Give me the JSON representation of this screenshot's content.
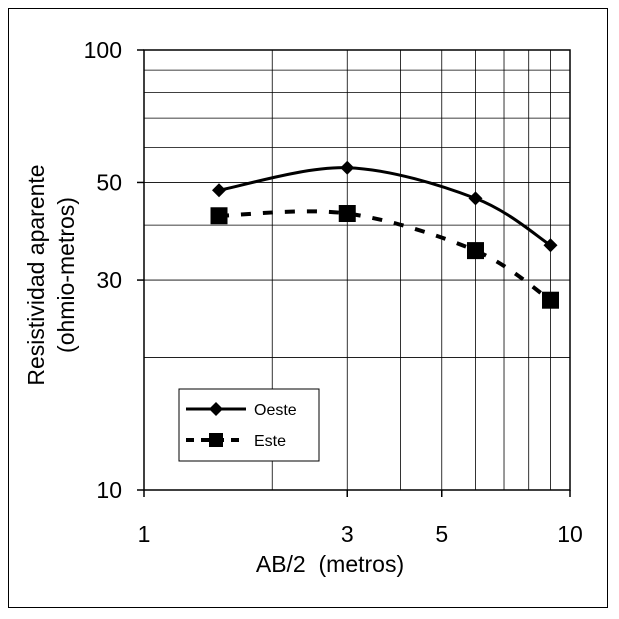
{
  "chart_data": {
    "type": "line",
    "xscale": "log",
    "yscale": "log",
    "xlim": [
      1,
      10
    ],
    "ylim": [
      10,
      100
    ],
    "xticks": [
      1,
      3,
      5,
      10
    ],
    "yticks": [
      10,
      30,
      50,
      100
    ],
    "xtick_labels": [
      "1",
      "3",
      "5",
      "10"
    ],
    "ytick_labels": [
      "10",
      "30",
      "50",
      "100"
    ],
    "xlabel": "AB/2  (metros)",
    "ylabel_line1": "Resistividad aparente",
    "ylabel_line2": "(ohmio-metros)",
    "grid": true,
    "legend_position": "lower-left",
    "series": [
      {
        "name": "Oeste",
        "style": "solid",
        "marker": "diamond",
        "color": "#000000",
        "x": [
          1.5,
          3,
          6,
          9
        ],
        "y": [
          48,
          54,
          46,
          36
        ]
      },
      {
        "name": "Este",
        "style": "dashed",
        "marker": "square",
        "color": "#000000",
        "x": [
          1.5,
          3,
          6,
          9
        ],
        "y": [
          42,
          42.5,
          35,
          27
        ]
      }
    ]
  }
}
